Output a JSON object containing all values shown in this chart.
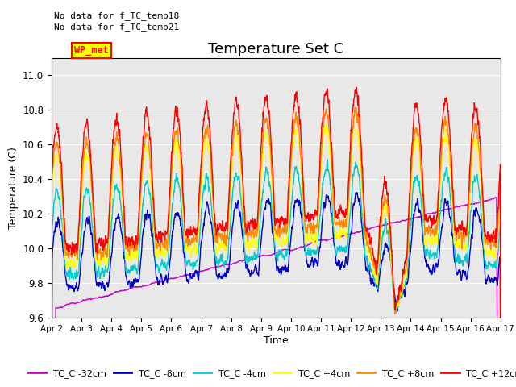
{
  "title": "Temperature Set C",
  "xlabel": "Time",
  "ylabel": "Temperature (C)",
  "ylim": [
    9.6,
    11.1
  ],
  "annotation_text": "No data for f_TC_temp18\nNo data for f_TC_temp21",
  "wp_met_label": "WP_met",
  "wp_met_color": "#ff0000",
  "wp_met_bg": "#ffff00",
  "background_color": "#e8e8e8",
  "legend_colors": [
    "#cc00cc",
    "#0000cc",
    "#00cccc",
    "#ffff00",
    "#ff8800",
    "#ff0000"
  ],
  "legend_labels": [
    "TC_C -32cm",
    "TC_C -8cm",
    "TC_C -4cm",
    "TC_C +4cm",
    "TC_C +8cm",
    "TC_C +12cm"
  ]
}
